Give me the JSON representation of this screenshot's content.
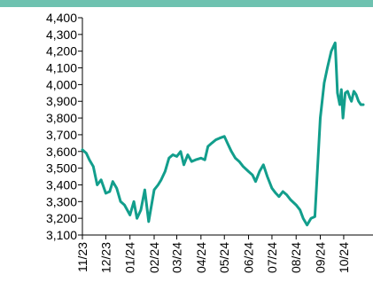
{
  "chart_data": {
    "type": "line",
    "title": "",
    "xlabel": "",
    "ylabel": "",
    "ylim": [
      3100,
      4400
    ],
    "yticks": [
      3100,
      3200,
      3300,
      3400,
      3500,
      3600,
      3700,
      3800,
      3900,
      4000,
      4100,
      4200,
      4300,
      4400
    ],
    "ytick_labels": [
      "3,100",
      "3,200",
      "3,300",
      "3,400",
      "3,500",
      "3,600",
      "3,700",
      "3,800",
      "3,900",
      "4,000",
      "4,100",
      "4,200",
      "4,300",
      "4,400"
    ],
    "xticks": [
      "11/23",
      "12/23",
      "01/24",
      "02/24",
      "03/24",
      "04/24",
      "05/24",
      "06/24",
      "07/24",
      "08/24",
      "09/24",
      "10/24"
    ],
    "grid": false,
    "legend": "none",
    "line_color": "#129e8c",
    "series": [
      {
        "x": [
          "2023-11-01",
          "2023-11-06",
          "2023-11-10",
          "2023-11-15",
          "2023-11-20",
          "2023-11-25",
          "2023-12-01",
          "2023-12-06",
          "2023-12-10",
          "2023-12-15",
          "2023-12-20",
          "2023-12-25",
          "2024-01-01",
          "2024-01-06",
          "2024-01-10",
          "2024-01-15",
          "2024-01-20",
          "2024-01-25",
          "2024-02-01",
          "2024-02-06",
          "2024-02-10",
          "2024-02-15",
          "2024-02-20",
          "2024-02-25",
          "2024-03-01",
          "2024-03-06",
          "2024-03-10",
          "2024-03-15",
          "2024-03-20",
          "2024-03-25",
          "2024-04-01",
          "2024-04-06",
          "2024-04-10",
          "2024-04-15",
          "2024-04-20",
          "2024-04-25",
          "2024-05-01",
          "2024-05-06",
          "2024-05-10",
          "2024-05-15",
          "2024-05-20",
          "2024-05-25",
          "2024-06-01",
          "2024-06-06",
          "2024-06-10",
          "2024-06-15",
          "2024-06-20",
          "2024-06-25",
          "2024-07-01",
          "2024-07-06",
          "2024-07-10",
          "2024-07-15",
          "2024-07-20",
          "2024-07-25",
          "2024-08-01",
          "2024-08-06",
          "2024-08-10",
          "2024-08-15",
          "2024-08-20",
          "2024-08-25",
          "2024-09-01",
          "2024-09-06",
          "2024-09-10",
          "2024-09-15",
          "2024-09-20",
          "2024-09-23",
          "2024-09-26",
          "2024-09-28",
          "2024-09-30",
          "2024-10-03",
          "2024-10-06",
          "2024-10-09",
          "2024-10-11",
          "2024-10-14",
          "2024-10-17",
          "2024-10-20",
          "2024-10-23",
          "2024-10-26"
        ],
        "values": [
          3610,
          3590,
          3550,
          3510,
          3400,
          3430,
          3350,
          3360,
          3420,
          3380,
          3300,
          3280,
          3220,
          3300,
          3200,
          3250,
          3370,
          3180,
          3370,
          3400,
          3430,
          3480,
          3560,
          3580,
          3570,
          3600,
          3520,
          3580,
          3540,
          3550,
          3560,
          3550,
          3630,
          3650,
          3670,
          3680,
          3690,
          3640,
          3600,
          3560,
          3540,
          3510,
          3480,
          3460,
          3420,
          3480,
          3520,
          3450,
          3380,
          3350,
          3330,
          3360,
          3340,
          3310,
          3280,
          3250,
          3200,
          3160,
          3200,
          3210,
          3800,
          4010,
          4100,
          4200,
          4250,
          3950,
          3880,
          3970,
          3800,
          3950,
          3960,
          3920,
          3900,
          3960,
          3940,
          3900,
          3880,
          3880
        ]
      }
    ]
  }
}
